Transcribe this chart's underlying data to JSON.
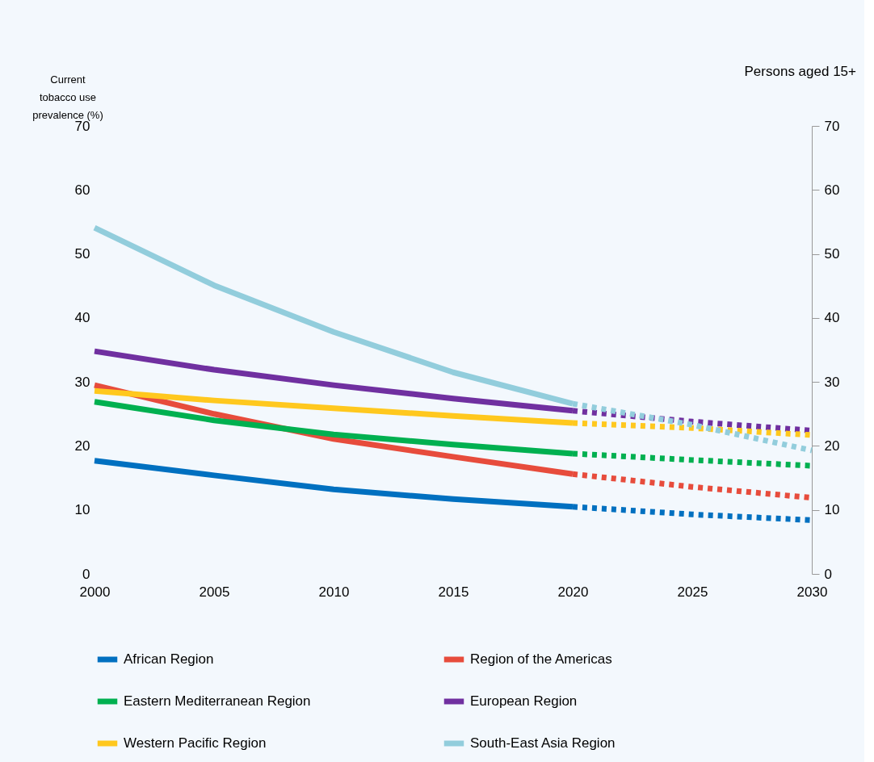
{
  "chart_data": {
    "type": "line",
    "ylabel": "Current tobacco use prevalence (%)",
    "annotations": [
      "Persons aged 15+"
    ],
    "xlim": [
      2000,
      2030
    ],
    "xticks": [
      2000,
      2005,
      2010,
      2015,
      2020,
      2025,
      2030
    ],
    "ylim": [
      0,
      70
    ],
    "yticks": [
      0,
      10,
      20,
      30,
      40,
      50,
      60,
      70
    ],
    "y2lim": [
      0,
      70
    ],
    "y2ticks": [
      0,
      10,
      20,
      30,
      40,
      50,
      60,
      70
    ],
    "grid": false,
    "legend": "bottom",
    "marker": "none",
    "series": [
      {
        "name": "African Region",
        "color": "#0070c0",
        "line_style": "solid",
        "x": [
          2000,
          2005,
          2010,
          2015,
          2020
        ],
        "values": [
          17.7,
          15.4,
          13.2,
          11.7,
          10.5
        ]
      },
      {
        "name": "Region of the Americas",
        "color": "#e74c3c",
        "line_style": "solid",
        "x": [
          2000,
          2005,
          2010,
          2015,
          2020
        ],
        "values": [
          29.5,
          25.0,
          21.1,
          18.3,
          15.6
        ]
      },
      {
        "name": "Eastern Mediterranean Region",
        "color": "#00b050",
        "line_style": "solid",
        "x": [
          2000,
          2005,
          2010,
          2015,
          2020
        ],
        "values": [
          26.9,
          24.0,
          21.8,
          20.2,
          18.8
        ]
      },
      {
        "name": "European Region",
        "color": "#7030a0",
        "line_style": "solid",
        "x": [
          2000,
          2005,
          2010,
          2015,
          2020
        ],
        "values": [
          34.8,
          31.9,
          29.5,
          27.4,
          25.5
        ]
      },
      {
        "name": "Western Pacific Region",
        "color": "#ffc81e",
        "line_style": "solid",
        "x": [
          2000,
          2005,
          2010,
          2015,
          2020
        ],
        "values": [
          28.6,
          27.1,
          25.9,
          24.7,
          23.6
        ]
      },
      {
        "name": "South-East Asia Region",
        "color": "#92cddc",
        "line_style": "solid",
        "x": [
          2000,
          2005,
          2010,
          2015,
          2020
        ],
        "values": [
          54.1,
          45.1,
          37.8,
          31.5,
          26.6
        ]
      },
      {
        "color": "#0070c0",
        "line_style": "dotted",
        "x": [
          2020,
          2025,
          2030
        ],
        "values": [
          10.5,
          9.3,
          8.4
        ]
      },
      {
        "color": "#e74c3c",
        "line_style": "dotted",
        "x": [
          2020,
          2025,
          2030
        ],
        "values": [
          15.6,
          13.6,
          11.9
        ]
      },
      {
        "color": "#00b050",
        "line_style": "dotted",
        "x": [
          2020,
          2025,
          2030
        ],
        "values": [
          18.8,
          17.8,
          16.9
        ]
      },
      {
        "color": "#7030a0",
        "line_style": "dotted",
        "x": [
          2020,
          2025,
          2030
        ],
        "values": [
          25.5,
          23.8,
          22.4
        ]
      },
      {
        "color": "#ffc81e",
        "line_style": "dotted",
        "x": [
          2020,
          2025,
          2030
        ],
        "values": [
          23.6,
          22.8,
          21.7
        ]
      },
      {
        "color": "#92cddc",
        "line_style": "dotted",
        "x": [
          2020,
          2025,
          2030
        ],
        "values": [
          26.6,
          23.3,
          19.3
        ]
      }
    ]
  }
}
